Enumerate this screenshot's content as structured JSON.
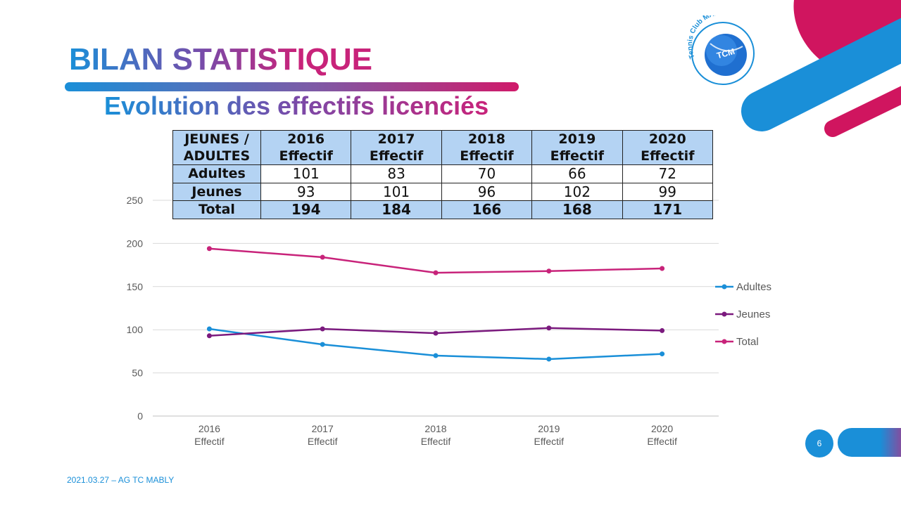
{
  "title": "BILAN STATISTIQUE",
  "subtitle": "Evolution des effectifs licenciés",
  "logo": {
    "text": "Tennis Club MABLY",
    "badge": "TCM"
  },
  "colors": {
    "blue": "#1a8fd8",
    "purple": "#7b1a7e",
    "magenta": "#c8237a",
    "table_bg": "#b4d3f3"
  },
  "table": {
    "header_line1": "JEUNES /",
    "header_line2": "ADULTES",
    "columns": [
      {
        "year": "2016",
        "label": "Effectif"
      },
      {
        "year": "2017",
        "label": "Effectif"
      },
      {
        "year": "2018",
        "label": "Effectif"
      },
      {
        "year": "2019",
        "label": "Effectif"
      },
      {
        "year": "2020",
        "label": "Effectif"
      }
    ],
    "rows": [
      {
        "label": "Adultes",
        "values": [
          "101",
          "83",
          "70",
          "66",
          "72"
        ]
      },
      {
        "label": "Jeunes",
        "values": [
          "93",
          "101",
          "96",
          "102",
          "99"
        ]
      },
      {
        "label": "Total",
        "values": [
          "194",
          "184",
          "166",
          "168",
          "171"
        ]
      }
    ]
  },
  "chart_data": {
    "type": "line",
    "categories": [
      [
        "2016",
        "Effectif"
      ],
      [
        "2017",
        "Effectif"
      ],
      [
        "2018",
        "Effectif"
      ],
      [
        "2019",
        "Effectif"
      ],
      [
        "2020",
        "Effectif"
      ]
    ],
    "series": [
      {
        "name": "Adultes",
        "values": [
          101,
          83,
          70,
          66,
          72
        ],
        "color": "#1a8fd8"
      },
      {
        "name": "Jeunes",
        "values": [
          93,
          101,
          96,
          102,
          99
        ],
        "color": "#7b1a7e"
      },
      {
        "name": "Total",
        "values": [
          194,
          184,
          166,
          168,
          171
        ],
        "color": "#c8237a"
      }
    ],
    "ylim": [
      0,
      250
    ],
    "yticks": [
      0,
      50,
      100,
      150,
      200,
      250
    ],
    "grid": true,
    "legend": "right"
  },
  "page_number": "6",
  "footer": "2021.03.27  – AG TC  MABLY"
}
